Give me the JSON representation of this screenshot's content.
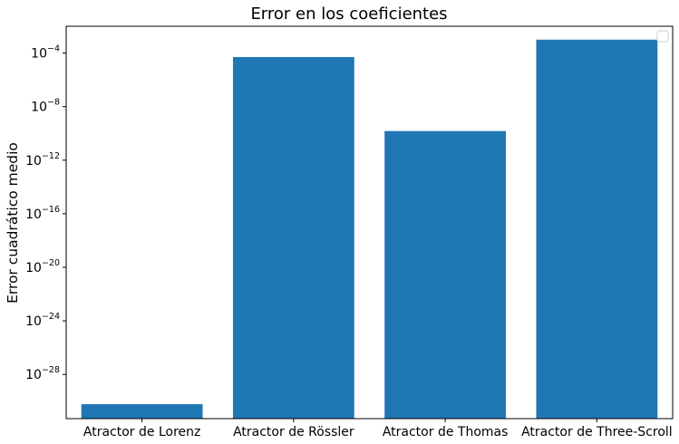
{
  "chart_data": {
    "type": "bar",
    "title": "Error en los coeficientes",
    "xlabel": "",
    "ylabel": "Error cuadrático medio",
    "yscale": "log",
    "ylim": [
      5e-32,
      0.01
    ],
    "yticks": [
      {
        "base": "10",
        "exp": "−28",
        "value": 1e-28
      },
      {
        "base": "10",
        "exp": "−24",
        "value": 1e-24
      },
      {
        "base": "10",
        "exp": "−20",
        "value": 1e-20
      },
      {
        "base": "10",
        "exp": "−16",
        "value": 1e-16
      },
      {
        "base": "10",
        "exp": "−12",
        "value": 1e-12
      },
      {
        "base": "10",
        "exp": "−8",
        "value": 1e-08
      },
      {
        "base": "10",
        "exp": "−4",
        "value": 0.0001
      }
    ],
    "categories": [
      "Atractor de Lorenz",
      "Atractor de Rössler",
      "Atractor de Thomas",
      "Atractor de Three-Scroll"
    ],
    "values": [
      6e-31,
      5e-05,
      1.5e-10,
      0.001
    ],
    "bar_color": "#1f77b4",
    "grid": false,
    "legend": {
      "placement": "top-right",
      "entries": []
    }
  }
}
